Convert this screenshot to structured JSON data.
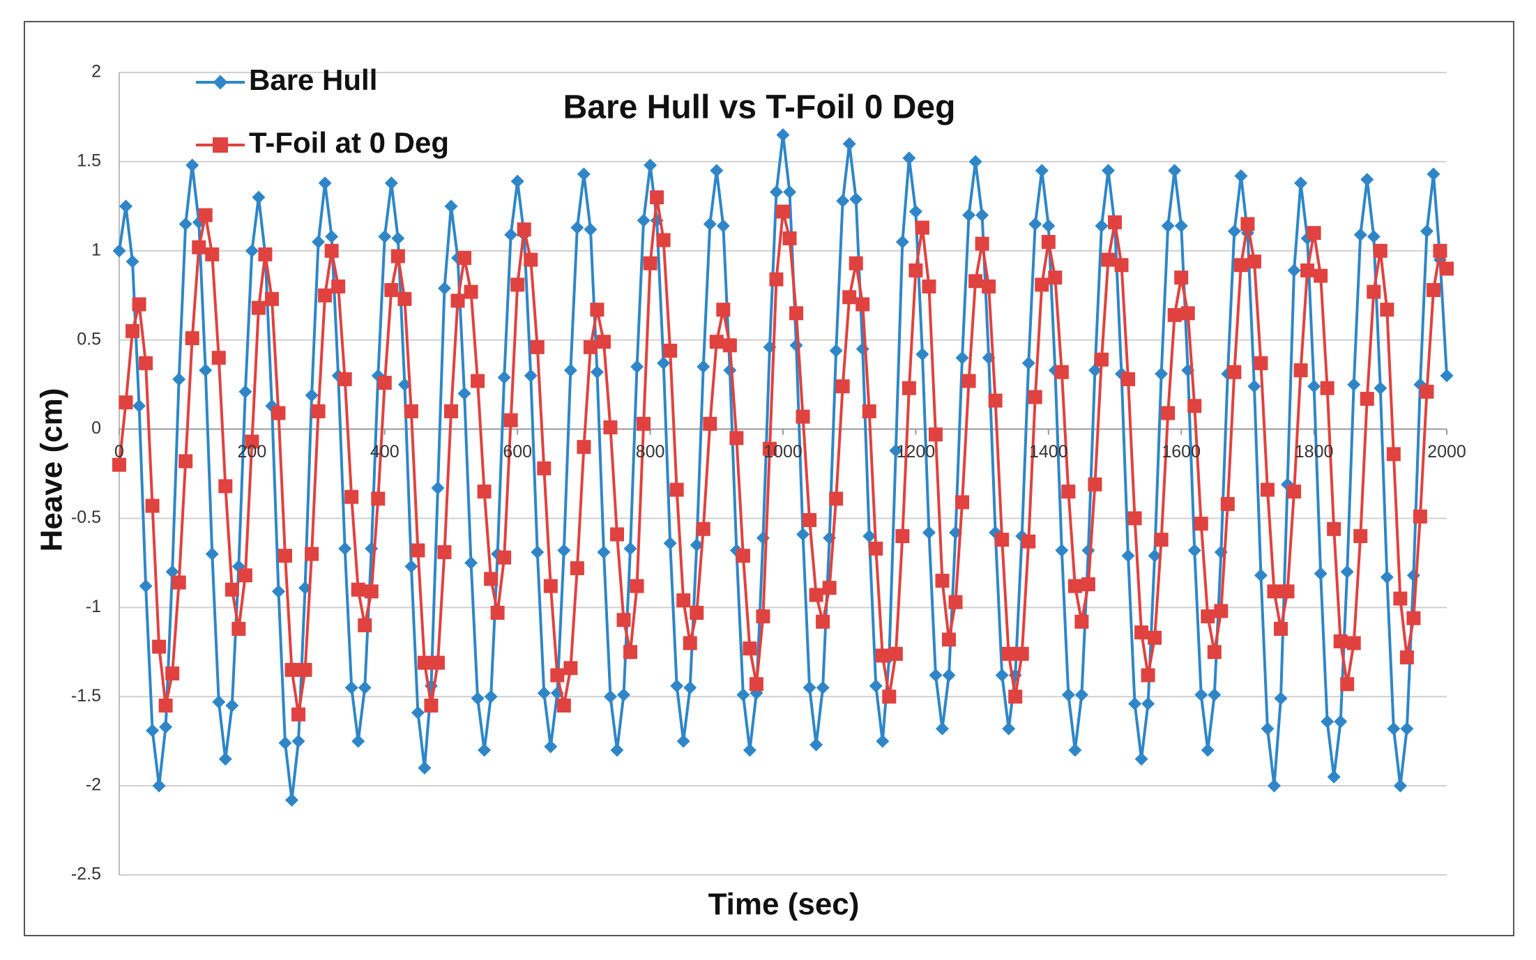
{
  "chart_data": {
    "type": "line",
    "title": "Bare Hull vs T-Foil 0 Deg",
    "x_label": "Time (sec)",
    "y_label": "Heave (cm)",
    "legend": "upper left",
    "grid": true,
    "xlim": [
      0,
      2000
    ],
    "xticks": [
      0,
      200,
      400,
      600,
      800,
      1000,
      1200,
      1400,
      1600,
      1800,
      2000
    ],
    "ylim": [
      -2.5,
      2
    ],
    "yticks": [
      -2.5,
      -2,
      -1.5,
      -1,
      -0.5,
      0,
      0.5,
      1,
      1.5,
      2
    ],
    "x": [
      0,
      10,
      20,
      30,
      40,
      50,
      60,
      70,
      80,
      90,
      100,
      110,
      120,
      130,
      140,
      150,
      160,
      170,
      180,
      190,
      200,
      210,
      220,
      230,
      240,
      250,
      260,
      270,
      280,
      290,
      300,
      310,
      320,
      330,
      340,
      350,
      360,
      370,
      380,
      390,
      400,
      410,
      420,
      430,
      440,
      450,
      460,
      470,
      480,
      490,
      500,
      510,
      520,
      530,
      540,
      550,
      560,
      570,
      580,
      590,
      600,
      610,
      620,
      630,
      640,
      650,
      660,
      670,
      680,
      690,
      700,
      710,
      720,
      730,
      740,
      750,
      760,
      770,
      780,
      790,
      800,
      810,
      820,
      830,
      840,
      850,
      860,
      870,
      880,
      890,
      900,
      910,
      920,
      930,
      940,
      950,
      960,
      970,
      980,
      990,
      1000,
      1010,
      1020,
      1030,
      1040,
      1050,
      1060,
      1070,
      1080,
      1090,
      1100,
      1110,
      1120,
      1130,
      1140,
      1150,
      1160,
      1170,
      1180,
      1190,
      1200,
      1210,
      1220,
      1230,
      1240,
      1250,
      1260,
      1270,
      1280,
      1290,
      1300,
      1310,
      1320,
      1330,
      1340,
      1350,
      1360,
      1370,
      1380,
      1390,
      1400,
      1410,
      1420,
      1430,
      1440,
      1450,
      1460,
      1470,
      1480,
      1490,
      1500,
      1510,
      1520,
      1530,
      1540,
      1550,
      1560,
      1570,
      1580,
      1590,
      1600,
      1610,
      1620,
      1630,
      1640,
      1650,
      1660,
      1670,
      1680,
      1690,
      1700,
      1710,
      1720,
      1730,
      1740,
      1750,
      1760,
      1770,
      1780,
      1790,
      1800,
      1810,
      1820,
      1830,
      1840,
      1850,
      1860,
      1870,
      1880,
      1890,
      1900,
      1910,
      1920,
      1930,
      1940,
      1950,
      1960,
      1970,
      1980,
      1990,
      2000
    ],
    "series": [
      {
        "name": "Bare Hull",
        "color": "#2e86c8",
        "marker": "diamond",
        "values": [
          1.0,
          1.25,
          0.94,
          0.13,
          -0.88,
          -1.69,
          -2.0,
          -1.67,
          -0.8,
          0.28,
          1.15,
          1.48,
          1.16,
          0.33,
          -0.7,
          -1.53,
          -1.85,
          -1.55,
          -0.77,
          0.21,
          1.0,
          1.3,
          0.98,
          0.13,
          -0.91,
          -1.76,
          -2.08,
          -1.75,
          -0.89,
          0.19,
          1.05,
          1.38,
          1.08,
          0.3,
          -0.67,
          -1.45,
          -1.75,
          -1.45,
          -0.67,
          0.3,
          1.08,
          1.38,
          1.07,
          0.25,
          -0.77,
          -1.59,
          -1.9,
          -1.44,
          -0.33,
          0.79,
          1.25,
          0.96,
          0.2,
          -0.75,
          -1.51,
          -1.8,
          -1.5,
          -0.7,
          0.29,
          1.09,
          1.39,
          1.09,
          0.3,
          -0.69,
          -1.48,
          -1.78,
          -1.48,
          -0.68,
          0.33,
          1.13,
          1.43,
          1.12,
          0.32,
          -0.69,
          -1.5,
          -1.8,
          -1.49,
          -0.67,
          0.35,
          1.17,
          1.48,
          1.17,
          0.37,
          -0.64,
          -1.44,
          -1.75,
          -1.45,
          -0.65,
          0.35,
          1.15,
          1.45,
          1.14,
          0.33,
          -0.68,
          -1.49,
          -1.8,
          -1.48,
          -0.61,
          0.46,
          1.33,
          1.65,
          1.33,
          0.47,
          -0.59,
          -1.45,
          -1.77,
          -1.45,
          -0.61,
          0.44,
          1.28,
          1.6,
          1.29,
          0.45,
          -0.6,
          -1.44,
          -1.75,
          -1.28,
          -0.12,
          1.05,
          1.52,
          1.22,
          0.42,
          -0.58,
          -1.38,
          -1.68,
          -1.38,
          -0.58,
          0.4,
          1.2,
          1.5,
          1.2,
          0.4,
          -0.58,
          -1.38,
          -1.68,
          -1.38,
          -0.6,
          0.37,
          1.15,
          1.45,
          1.14,
          0.33,
          -0.68,
          -1.49,
          -1.8,
          -1.49,
          -0.68,
          0.33,
          1.14,
          1.45,
          1.14,
          0.31,
          -0.71,
          -1.54,
          -1.85,
          -1.54,
          -0.71,
          0.31,
          1.14,
          1.45,
          1.14,
          0.33,
          -0.68,
          -1.49,
          -1.8,
          -1.49,
          -0.69,
          0.31,
          1.11,
          1.42,
          1.1,
          0.24,
          -0.82,
          -1.68,
          -2.0,
          -1.51,
          -0.31,
          0.89,
          1.38,
          1.07,
          0.24,
          -0.81,
          -1.64,
          -1.95,
          -1.64,
          -0.8,
          0.25,
          1.09,
          1.4,
          1.08,
          0.23,
          -0.83,
          -1.68,
          -2.0,
          -1.68,
          -0.82,
          0.25,
          1.11,
          1.43,
          0.95,
          0.3
        ]
      },
      {
        "name": "T-Foil at 0 Deg",
        "color": "#e0423f",
        "marker": "square",
        "values": [
          -0.2,
          0.15,
          0.55,
          0.7,
          0.37,
          -0.43,
          -1.22,
          -1.55,
          -1.37,
          -0.86,
          -0.18,
          0.51,
          1.02,
          1.2,
          0.98,
          0.4,
          -0.32,
          -0.9,
          -1.12,
          -0.82,
          -0.07,
          0.68,
          0.98,
          0.73,
          0.09,
          -0.71,
          -1.35,
          -1.6,
          -1.35,
          -0.7,
          0.1,
          0.75,
          1.0,
          0.8,
          0.28,
          -0.38,
          -0.9,
          -1.1,
          -0.91,
          -0.39,
          0.26,
          0.78,
          0.97,
          0.73,
          0.1,
          -0.68,
          -1.31,
          -1.55,
          -1.31,
          -0.69,
          0.1,
          0.72,
          0.96,
          0.77,
          0.27,
          -0.35,
          -0.84,
          -1.03,
          -0.72,
          0.05,
          0.81,
          1.12,
          0.95,
          0.46,
          -0.22,
          -0.88,
          -1.38,
          -1.55,
          -1.34,
          -0.78,
          -0.1,
          0.46,
          0.67,
          0.49,
          0.01,
          -0.59,
          -1.07,
          -1.25,
          -0.88,
          0.03,
          0.93,
          1.3,
          1.06,
          0.44,
          -0.34,
          -0.96,
          -1.2,
          -1.03,
          -0.56,
          0.03,
          0.49,
          0.67,
          0.47,
          -0.05,
          -0.71,
          -1.23,
          -1.43,
          -1.05,
          -0.11,
          0.84,
          1.22,
          1.07,
          0.65,
          0.07,
          -0.51,
          -0.93,
          -1.08,
          -0.89,
          -0.39,
          0.24,
          0.74,
          0.93,
          0.7,
          0.1,
          -0.67,
          -1.27,
          -1.5,
          -1.26,
          -0.6,
          0.23,
          0.89,
          1.13,
          0.8,
          -0.03,
          -0.85,
          -1.18,
          -0.97,
          -0.41,
          0.27,
          0.83,
          1.04,
          0.8,
          0.16,
          -0.62,
          -1.26,
          -1.5,
          -1.26,
          -0.63,
          0.18,
          0.81,
          1.05,
          0.85,
          0.32,
          -0.35,
          -0.88,
          -1.08,
          -0.87,
          -0.31,
          0.39,
          0.95,
          1.16,
          0.92,
          0.28,
          -0.5,
          -1.14,
          -1.38,
          -1.17,
          -0.62,
          0.09,
          0.64,
          0.85,
          0.65,
          0.13,
          -0.53,
          -1.05,
          -1.25,
          -1.02,
          -0.42,
          0.32,
          0.92,
          1.15,
          0.94,
          0.37,
          -0.34,
          -0.91,
          -1.12,
          -0.91,
          -0.35,
          0.33,
          0.89,
          1.1,
          0.86,
          0.23,
          -0.56,
          -1.19,
          -1.43,
          -1.2,
          -0.6,
          0.17,
          0.77,
          1.0,
          0.67,
          -0.14,
          -0.95,
          -1.28,
          -1.06,
          -0.49,
          0.21,
          0.78,
          1.0,
          0.9
        ]
      }
    ]
  }
}
